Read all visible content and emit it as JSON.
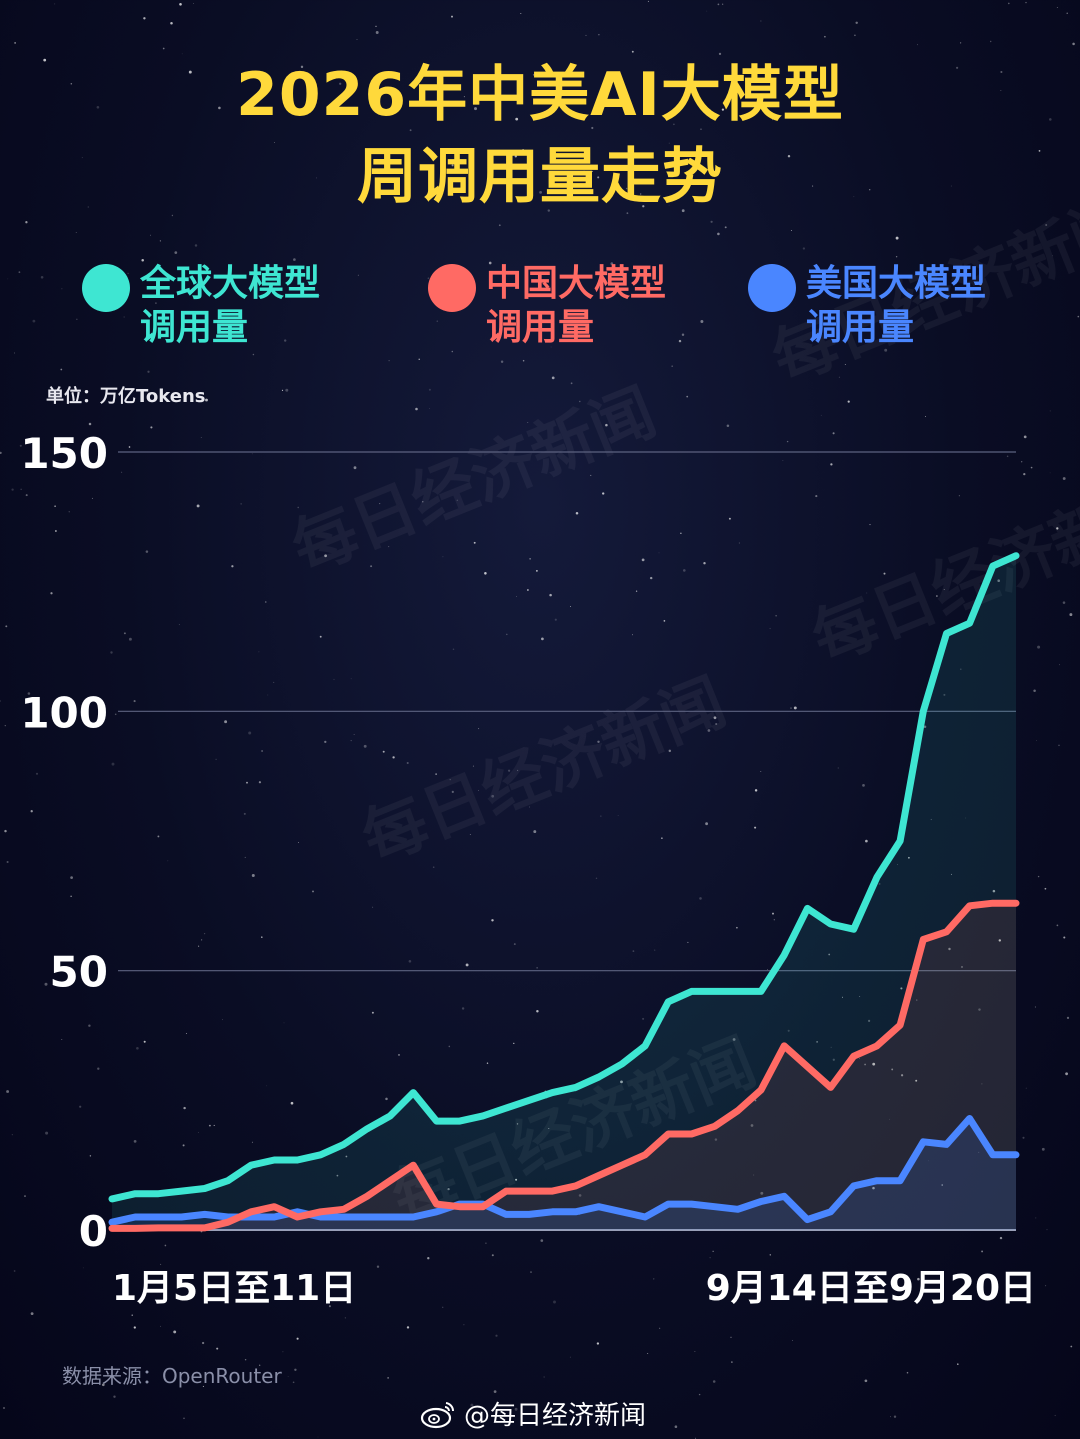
{
  "title": {
    "line1": "2026年中美AI大模型",
    "line2": "周调用量走势"
  },
  "legend": [
    {
      "line1": "全球大模型",
      "line2": "调用量",
      "color": "#3ee6d2"
    },
    {
      "line1": "中国大模型",
      "line2": "调用量",
      "color": "#ff6a64"
    },
    {
      "line1": "美国大模型",
      "line2": "调用量",
      "color": "#4a86ff"
    }
  ],
  "unit": "单位：万亿Tokens",
  "source": "数据来源：OpenRouter",
  "footer": "@每日经济新闻",
  "watermark": "每日经济新闻",
  "chart_data": {
    "type": "line",
    "ylim": [
      0,
      150
    ],
    "yticks": [
      0,
      50,
      100,
      150
    ],
    "x_first_label": "1月5日至11日",
    "x_last_label": "9月14日至9月20日",
    "series": [
      {
        "name": "全球大模型调用量",
        "color": "#3ee6d2",
        "values": [
          6,
          7,
          7,
          7.5,
          8,
          9.5,
          12.5,
          13.5,
          13.5,
          14.5,
          16.5,
          19.5,
          22,
          26.5,
          21,
          21,
          22,
          23.5,
          25,
          26.5,
          27.5,
          29.5,
          32,
          35.5,
          44,
          46,
          46,
          46,
          46,
          53,
          62,
          59,
          58,
          68,
          75,
          100,
          115,
          117,
          128,
          130
        ]
      },
      {
        "name": "中国大模型调用量",
        "color": "#ff6a64",
        "values": [
          0.3,
          0.3,
          0.4,
          0.4,
          0.4,
          1.5,
          3.5,
          4.5,
          2.5,
          3.5,
          4,
          6.5,
          9.5,
          12.5,
          5,
          4.5,
          4.5,
          7.5,
          7.5,
          7.5,
          8.5,
          10.5,
          12.5,
          14.5,
          18.5,
          18.5,
          20,
          23,
          27,
          35.5,
          31.5,
          27.5,
          33.5,
          35.5,
          39.5,
          56,
          57.5,
          62.5,
          63,
          63
        ]
      },
      {
        "name": "美国大模型调用量",
        "color": "#4a86ff",
        "values": [
          1.5,
          2.5,
          2.5,
          2.5,
          3,
          2.5,
          2.5,
          2.5,
          3.5,
          2.5,
          2.5,
          2.5,
          2.5,
          2.5,
          3.5,
          5,
          5,
          3,
          3,
          3.5,
          3.5,
          4.5,
          3.5,
          2.5,
          5,
          5,
          4.5,
          4,
          5.5,
          6.5,
          2,
          3.5,
          8.5,
          9.5,
          9.5,
          17,
          16.5,
          21.5,
          14.5,
          14.5
        ]
      }
    ]
  }
}
